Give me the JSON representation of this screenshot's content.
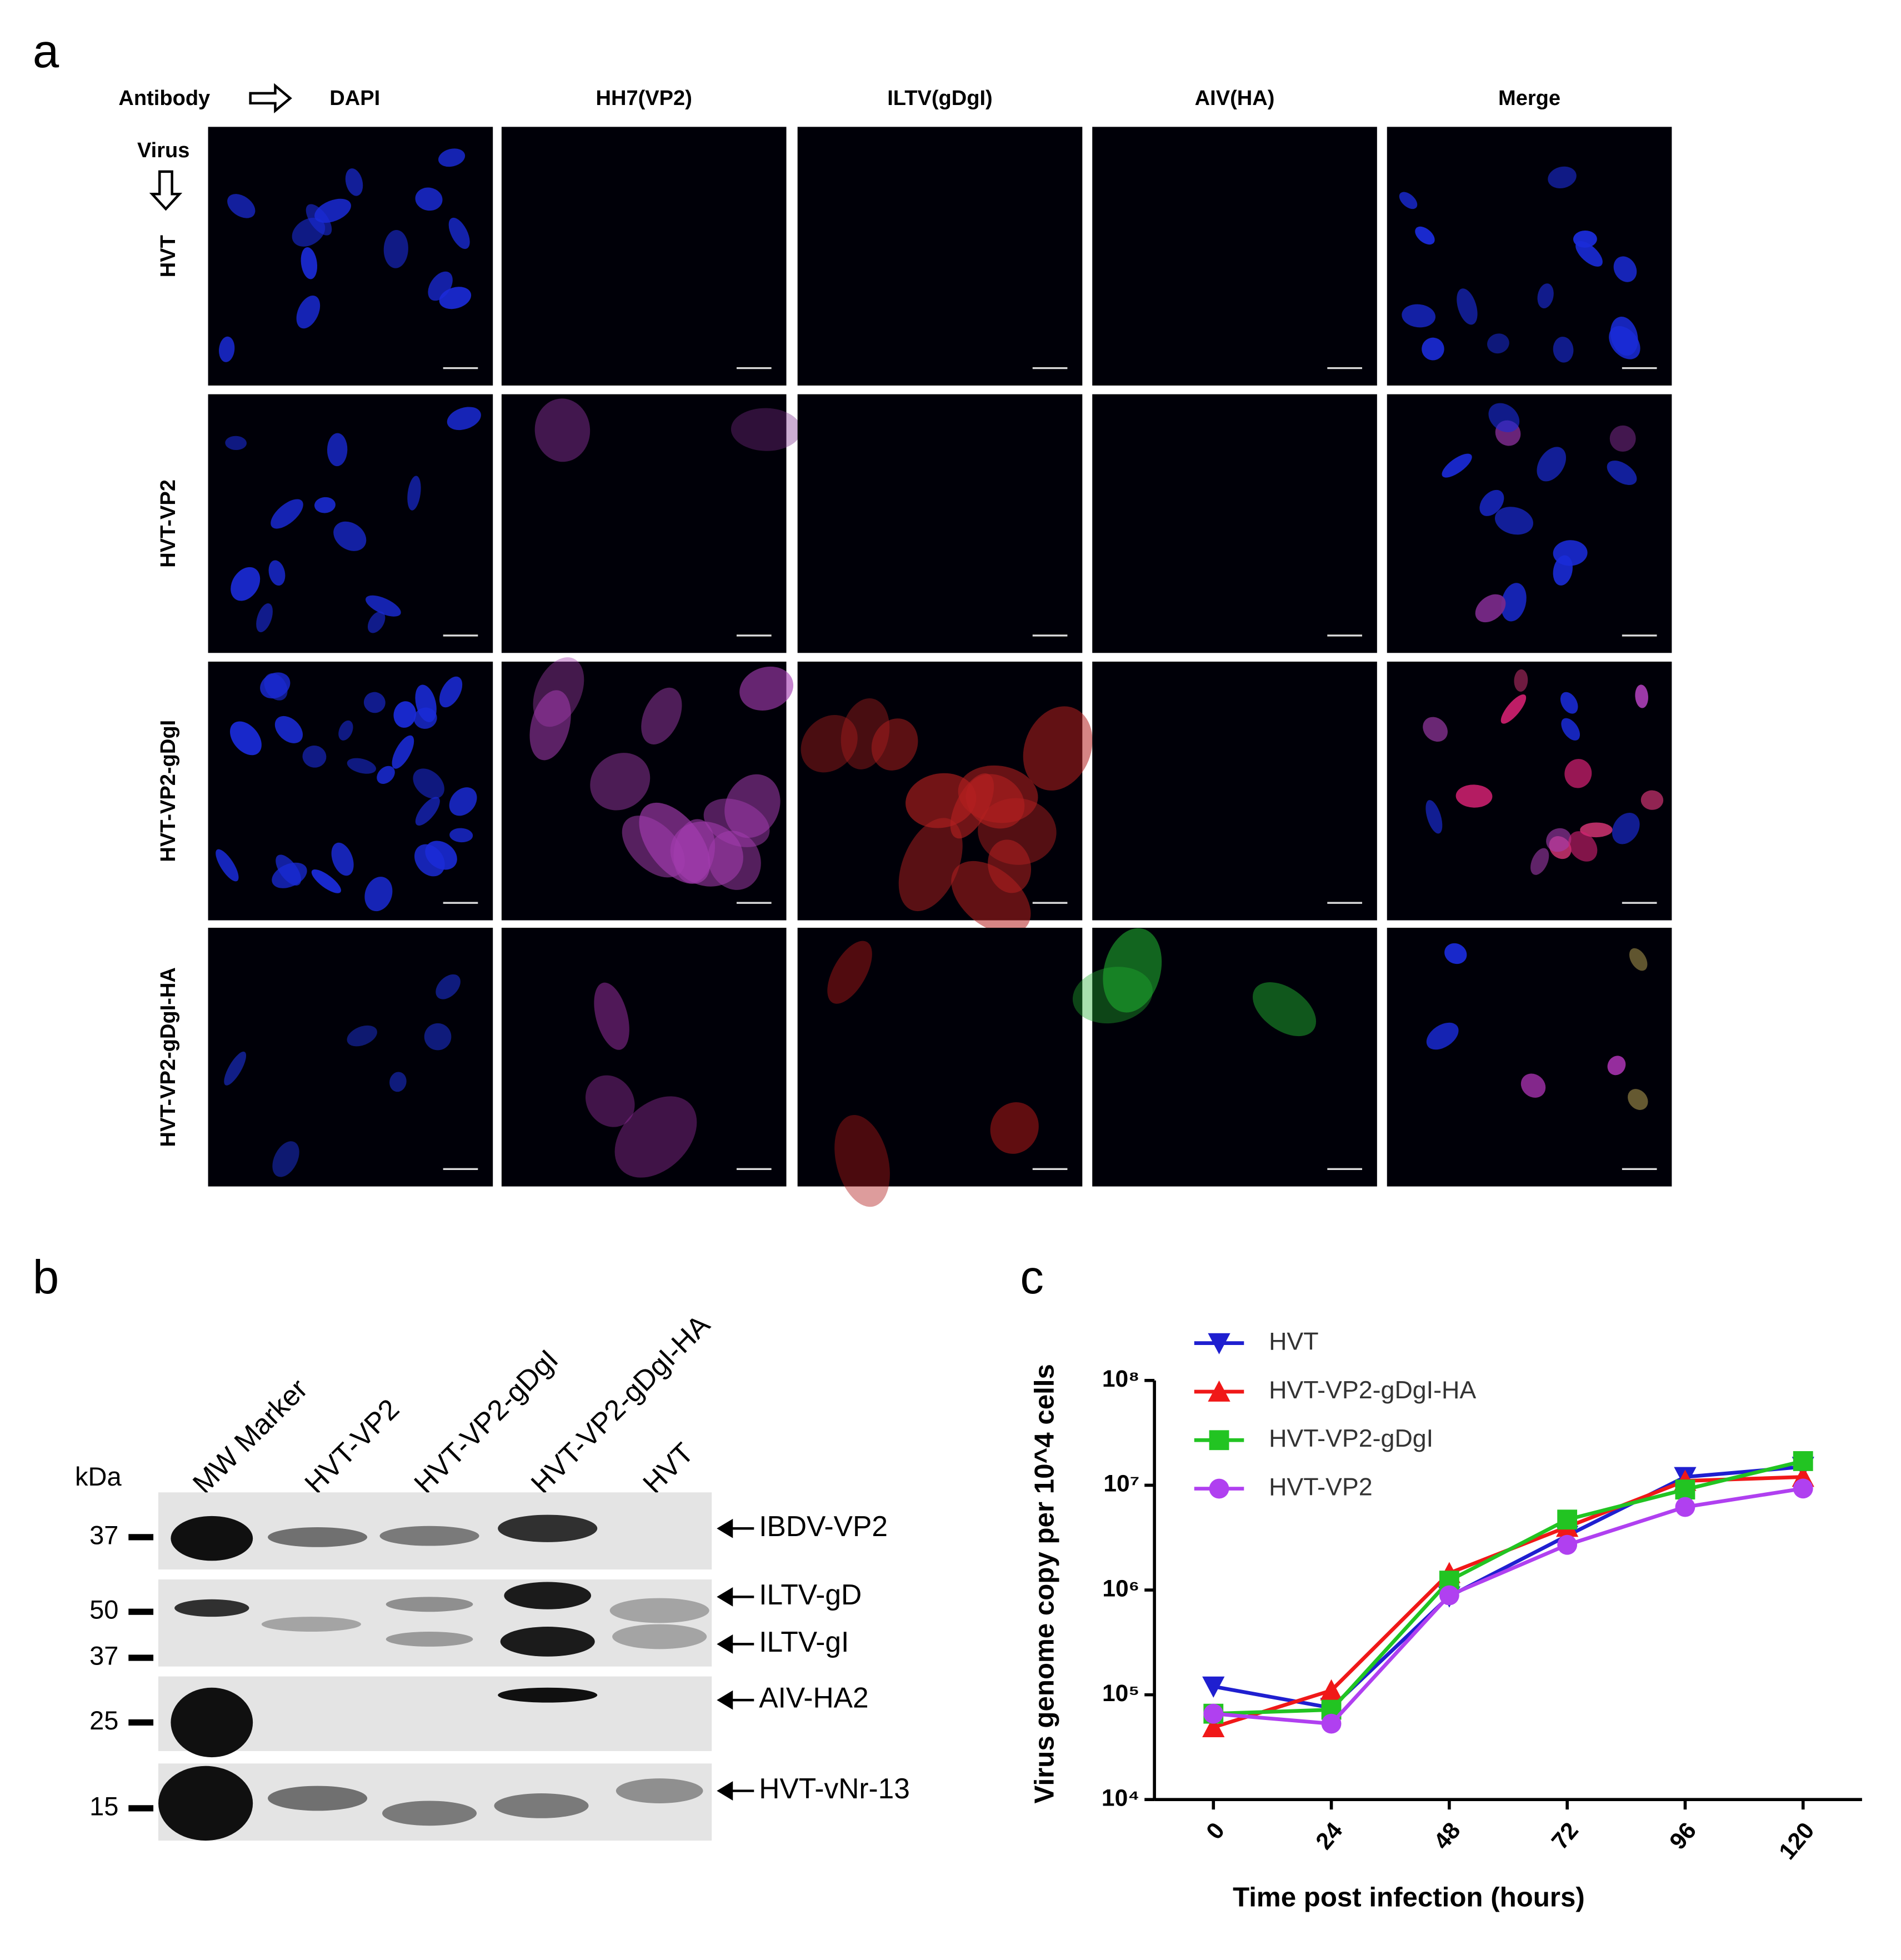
{
  "panel_a": {
    "label": "a",
    "antibody_label": "Antibody",
    "virus_label": "Virus",
    "columns": [
      "DAPI",
      "HH7(VP2)",
      "ILTV(gDgI)",
      "AIV(HA)",
      "Merge"
    ],
    "rows": [
      "HVT",
      "HVT-VP2",
      "HVT-VP2-gDgI",
      "HVT-VP2-gDgI-HA"
    ]
  },
  "panel_b": {
    "label": "b",
    "unit_label": "kDa",
    "lanes": [
      "MW Marker",
      "HVT-VP2",
      "HVT-VP2-gDgI",
      "HVT-VP2-gDgI-HA",
      "HVT"
    ],
    "markers": [
      37,
      50,
      37,
      25,
      15
    ],
    "bands": [
      "IBDV-VP2",
      "ILTV-gD",
      "ILTV-gI",
      "AIV-HA2",
      "HVT-vNr-13"
    ]
  },
  "chart_data": {
    "type": "line",
    "panel_label": "c",
    "x_label": "Time post infection (hours)",
    "y_label": "Virus genome copy per 10^4 cells",
    "x": [
      0,
      24,
      48,
      72,
      96,
      120
    ],
    "xlim": [
      -12,
      132
    ],
    "xticks": [
      0,
      24,
      48,
      72,
      96,
      120
    ],
    "ylim": [
      10000,
      100000000
    ],
    "log_y": true,
    "yticks": [
      {
        "value": 10000,
        "label": "10⁴"
      },
      {
        "value": 100000,
        "label": "10⁵"
      },
      {
        "value": 1000000,
        "label": "10⁶"
      },
      {
        "value": 10000000,
        "label": "10⁷"
      },
      {
        "value": 100000000,
        "label": "10⁸"
      }
    ],
    "legend": "top-left",
    "series": [
      {
        "name": "HVT",
        "color": "#1f1fd0",
        "marker": "triangle-down",
        "values": [
          120000,
          75000,
          870000,
          3300000,
          12000000,
          15000000
        ]
      },
      {
        "name": "HVT-VP2-gDgI-HA",
        "color": "#f01818",
        "marker": "triangle-up",
        "values": [
          49000,
          110000,
          1450000,
          4000000,
          11000000,
          12000000
        ]
      },
      {
        "name": "HVT-VP2-gDgI",
        "color": "#22c422",
        "marker": "square",
        "values": [
          66000,
          72000,
          1230000,
          4700000,
          9100000,
          17000000
        ]
      },
      {
        "name": "HVT-VP2",
        "color": "#b040f0",
        "marker": "circle",
        "values": [
          66000,
          53000,
          890000,
          2700000,
          6200000,
          9300000
        ]
      }
    ]
  }
}
